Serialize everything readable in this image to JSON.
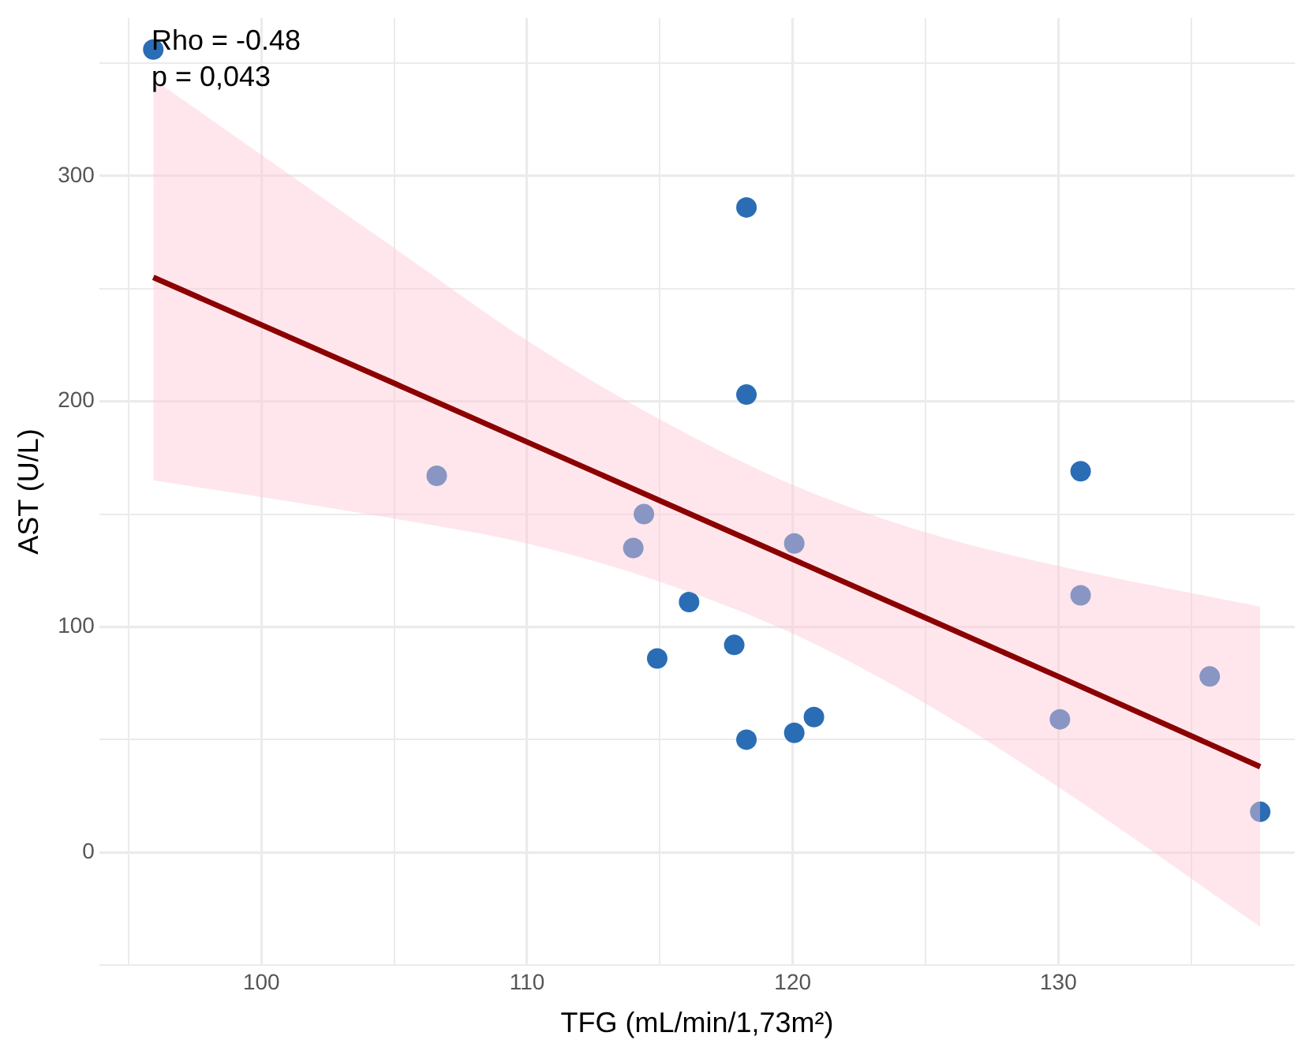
{
  "chart_data": {
    "type": "scatter",
    "xlabel": "TFG (mL/min/1,73m²)",
    "ylabel": "AST (U/L)",
    "annotations": [
      "Rho = -0.48",
      "p = 0,043"
    ],
    "xlim": [
      93.9,
      138.9
    ],
    "ylim": [
      -50,
      370
    ],
    "xticks": [
      {
        "value": 95,
        "label": null
      },
      100,
      {
        "value": 105,
        "label": null
      },
      110,
      {
        "value": 115,
        "label": null
      },
      120,
      {
        "value": 125,
        "label": null
      },
      130,
      {
        "value": 135,
        "label": null
      }
    ],
    "yticks": [
      {
        "value": -50,
        "label": null
      },
      0,
      {
        "value": 50,
        "label": null
      },
      100,
      {
        "value": 150,
        "label": null
      },
      200,
      {
        "value": 250,
        "label": null
      },
      300,
      {
        "value": 350,
        "label": null
      }
    ],
    "grid": true,
    "marker": "circle",
    "series": [
      {
        "color": "#2a6db5",
        "x": [
          95.93,
          118.26,
          118.26,
          130.84,
          106.6,
          114.4,
          114.0,
          120.06,
          130.84,
          116.1,
          117.8,
          114.9,
          135.7,
          130.06,
          120.8,
          120.06,
          118.26,
          137.6
        ],
        "values": [
          356,
          286,
          203,
          169,
          167,
          150,
          135,
          137,
          114,
          111,
          92,
          86,
          78,
          59,
          60,
          53,
          50,
          18
        ]
      },
      {
        "type": "line",
        "color": "#8b0000",
        "marker": "none",
        "x": [
          95.93,
          105,
          110,
          115,
          120,
          125,
          130,
          137.6
        ],
        "values": [
          255,
          208,
          182,
          156,
          130,
          104,
          78,
          38
        ],
        "lower": [
          165,
          148,
          137,
          120,
          97,
          66,
          29,
          -33
        ],
        "upper": [
          343,
          268,
          227,
          192,
          163,
          142,
          127,
          109
        ]
      }
    ]
  }
}
